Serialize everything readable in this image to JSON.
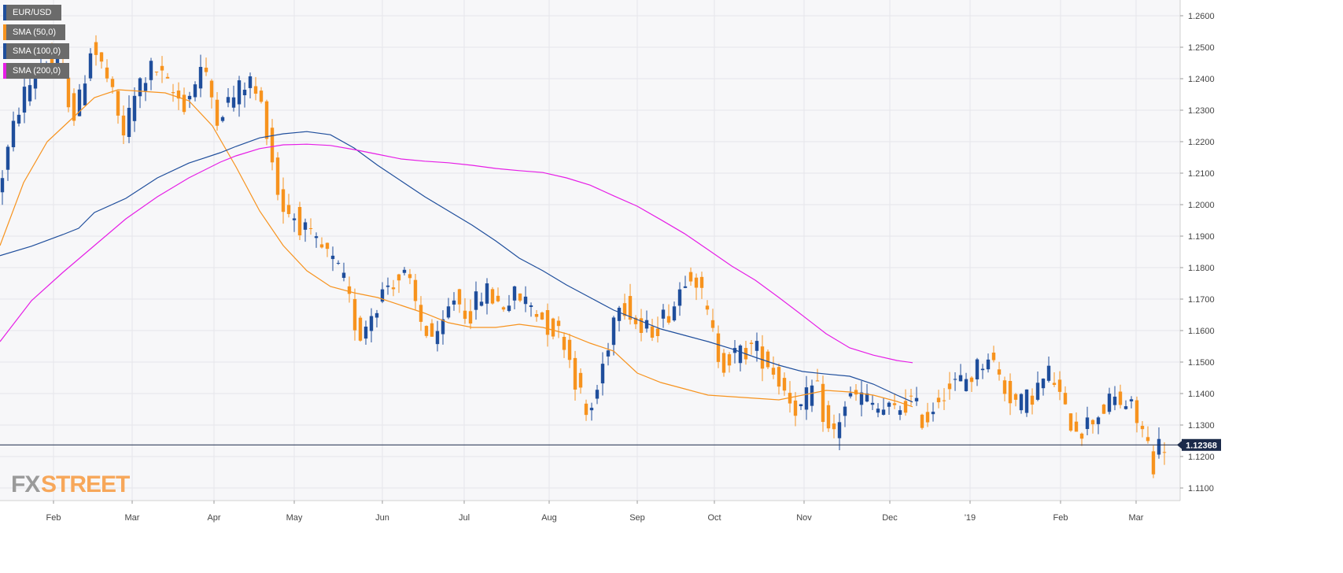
{
  "chart_data": {
    "type": "candlestick",
    "symbol": "EUR/USD",
    "timeframe": "daily",
    "last_price": "1.12368",
    "ylim": [
      1.106,
      1.265
    ],
    "y_ticks": [
      "1.2600",
      "1.2500",
      "1.2400",
      "1.2300",
      "1.2200",
      "1.2100",
      "1.2000",
      "1.1900",
      "1.1800",
      "1.1700",
      "1.1600",
      "1.1500",
      "1.1400",
      "1.1300",
      "1.1200",
      "1.1100"
    ],
    "x_ticks": [
      "Feb",
      "Mar",
      "Apr",
      "May",
      "Jun",
      "Jul",
      "Aug",
      "Sep",
      "Oct",
      "Nov",
      "Dec",
      "'19",
      "Feb",
      "Mar"
    ],
    "grid": true,
    "legend_position": "top-left",
    "legend": [
      {
        "label": "EUR/USD",
        "color": "#1f4e9c"
      },
      {
        "label": "SMA (50,0)",
        "color": "#f7931e"
      },
      {
        "label": "SMA (100,0)",
        "color": "#1f4e9c"
      },
      {
        "label": "SMA (200,0)",
        "color": "#e61ee6"
      }
    ],
    "series": [
      {
        "name": "SMA (50,0)",
        "color": "#f7931e",
        "points": [
          [
            0,
            1.187
          ],
          [
            30,
            1.207
          ],
          [
            60,
            1.22
          ],
          [
            90,
            1.227
          ],
          [
            120,
            1.234
          ],
          [
            150,
            1.2365
          ],
          [
            180,
            1.236
          ],
          [
            210,
            1.2355
          ],
          [
            240,
            1.233
          ],
          [
            270,
            1.225
          ],
          [
            300,
            1.212
          ],
          [
            330,
            1.198
          ],
          [
            360,
            1.187
          ],
          [
            390,
            1.179
          ],
          [
            420,
            1.174
          ],
          [
            450,
            1.172
          ],
          [
            480,
            1.1705
          ],
          [
            510,
            1.168
          ],
          [
            540,
            1.1655
          ],
          [
            570,
            1.1625
          ],
          [
            600,
            1.161
          ],
          [
            630,
            1.161
          ],
          [
            660,
            1.162
          ],
          [
            690,
            1.161
          ],
          [
            720,
            1.159
          ],
          [
            750,
            1.156
          ],
          [
            780,
            1.1535
          ],
          [
            810,
            1.1465
          ],
          [
            840,
            1.1435
          ],
          [
            870,
            1.1415
          ],
          [
            900,
            1.1395
          ],
          [
            930,
            1.139
          ],
          [
            960,
            1.1385
          ],
          [
            990,
            1.138
          ],
          [
            1020,
            1.1395
          ],
          [
            1050,
            1.141
          ],
          [
            1080,
            1.1405
          ],
          [
            1110,
            1.1395
          ],
          [
            1140,
            1.1375
          ],
          [
            1160,
            1.1358
          ]
        ]
      },
      {
        "name": "SMA (100,0)",
        "color": "#1f4e9c",
        "points": [
          [
            0,
            1.1838
          ],
          [
            40,
            1.1868
          ],
          [
            80,
            1.1905
          ],
          [
            100,
            1.1925
          ],
          [
            120,
            1.1975
          ],
          [
            160,
            1.202
          ],
          [
            200,
            1.2085
          ],
          [
            240,
            1.2132
          ],
          [
            280,
            1.2165
          ],
          [
            300,
            1.2185
          ],
          [
            330,
            1.2212
          ],
          [
            360,
            1.2225
          ],
          [
            390,
            1.2232
          ],
          [
            420,
            1.2222
          ],
          [
            450,
            1.218
          ],
          [
            480,
            1.2125
          ],
          [
            510,
            1.2075
          ],
          [
            540,
            1.2025
          ],
          [
            570,
            1.198
          ],
          [
            600,
            1.1935
          ],
          [
            630,
            1.1885
          ],
          [
            660,
            1.183
          ],
          [
            690,
            1.179
          ],
          [
            720,
            1.1745
          ],
          [
            750,
            1.1705
          ],
          [
            780,
            1.1665
          ],
          [
            810,
            1.1635
          ],
          [
            840,
            1.1605
          ],
          [
            870,
            1.1585
          ],
          [
            900,
            1.1565
          ],
          [
            930,
            1.1542
          ],
          [
            960,
            1.1515
          ],
          [
            990,
            1.149
          ],
          [
            1020,
            1.147
          ],
          [
            1050,
            1.1462
          ],
          [
            1080,
            1.1455
          ],
          [
            1110,
            1.143
          ],
          [
            1140,
            1.1395
          ],
          [
            1160,
            1.1373
          ]
        ]
      },
      {
        "name": "SMA (200,0)",
        "color": "#e61ee6",
        "points": [
          [
            0,
            1.1565
          ],
          [
            40,
            1.1695
          ],
          [
            80,
            1.1785
          ],
          [
            120,
            1.187
          ],
          [
            160,
            1.1955
          ],
          [
            200,
            1.2025
          ],
          [
            240,
            1.2085
          ],
          [
            280,
            1.2135
          ],
          [
            300,
            1.2155
          ],
          [
            330,
            1.2178
          ],
          [
            360,
            1.219
          ],
          [
            390,
            1.2192
          ],
          [
            420,
            1.2188
          ],
          [
            450,
            1.2175
          ],
          [
            480,
            1.216
          ],
          [
            510,
            1.2145
          ],
          [
            540,
            1.2138
          ],
          [
            570,
            1.2133
          ],
          [
            600,
            1.2125
          ],
          [
            630,
            1.2115
          ],
          [
            660,
            1.2108
          ],
          [
            690,
            1.2102
          ],
          [
            720,
            1.2085
          ],
          [
            750,
            1.2062
          ],
          [
            780,
            1.2028
          ],
          [
            810,
            1.1995
          ],
          [
            840,
            1.1952
          ],
          [
            870,
            1.1908
          ],
          [
            900,
            1.1857
          ],
          [
            930,
            1.1805
          ],
          [
            960,
            1.176
          ],
          [
            990,
            1.1705
          ],
          [
            1020,
            1.1648
          ],
          [
            1050,
            1.159
          ],
          [
            1080,
            1.1545
          ],
          [
            1110,
            1.1522
          ],
          [
            1140,
            1.1505
          ],
          [
            1160,
            1.1498
          ]
        ]
      }
    ],
    "price_path": [
      [
        0,
        1.203
      ],
      [
        30,
        1.233
      ],
      [
        60,
        1.246
      ],
      [
        80,
        1.243
      ],
      [
        100,
        1.227
      ],
      [
        120,
        1.251
      ],
      [
        140,
        1.24
      ],
      [
        160,
        1.222
      ],
      [
        180,
        1.238
      ],
      [
        200,
        1.244
      ],
      [
        220,
        1.236
      ],
      [
        240,
        1.232
      ],
      [
        260,
        1.244
      ],
      [
        280,
        1.229
      ],
      [
        300,
        1.234
      ],
      [
        320,
        1.24
      ],
      [
        340,
        1.229
      ],
      [
        360,
        1.2
      ],
      [
        380,
        1.196
      ],
      [
        400,
        1.188
      ],
      [
        420,
        1.184
      ],
      [
        440,
        1.176
      ],
      [
        460,
        1.158
      ],
      [
        480,
        1.168
      ],
      [
        500,
        1.176
      ],
      [
        520,
        1.177
      ],
      [
        540,
        1.162
      ],
      [
        560,
        1.156
      ],
      [
        580,
        1.171
      ],
      [
        600,
        1.165
      ],
      [
        620,
        1.173
      ],
      [
        640,
        1.168
      ],
      [
        660,
        1.171
      ],
      [
        680,
        1.168
      ],
      [
        700,
        1.162
      ],
      [
        720,
        1.158
      ],
      [
        735,
        1.145
      ],
      [
        750,
        1.132
      ],
      [
        760,
        1.138
      ],
      [
        780,
        1.16
      ],
      [
        790,
        1.171
      ],
      [
        800,
        1.168
      ],
      [
        820,
        1.159
      ],
      [
        840,
        1.162
      ],
      [
        860,
        1.168
      ],
      [
        875,
        1.178
      ],
      [
        885,
        1.18
      ],
      [
        900,
        1.167
      ],
      [
        920,
        1.15
      ],
      [
        940,
        1.152
      ],
      [
        960,
        1.155
      ],
      [
        980,
        1.15
      ],
      [
        1000,
        1.142
      ],
      [
        1020,
        1.134
      ],
      [
        1040,
        1.143
      ],
      [
        1060,
        1.125
      ],
      [
        1080,
        1.138
      ],
      [
        1100,
        1.139
      ],
      [
        1120,
        1.135
      ],
      [
        1140,
        1.134
      ],
      [
        1160,
        1.138
      ],
      [
        1180,
        1.131
      ],
      [
        1200,
        1.141
      ],
      [
        1220,
        1.143
      ],
      [
        1240,
        1.146
      ],
      [
        1260,
        1.153
      ],
      [
        1280,
        1.142
      ],
      [
        1300,
        1.136
      ],
      [
        1320,
        1.141
      ],
      [
        1340,
        1.147
      ],
      [
        1360,
        1.132
      ],
      [
        1380,
        1.129
      ],
      [
        1400,
        1.134
      ],
      [
        1420,
        1.138
      ],
      [
        1440,
        1.136
      ],
      [
        1460,
        1.126
      ],
      [
        1470,
        1.118
      ],
      [
        1478,
        1.124
      ]
    ]
  }
}
